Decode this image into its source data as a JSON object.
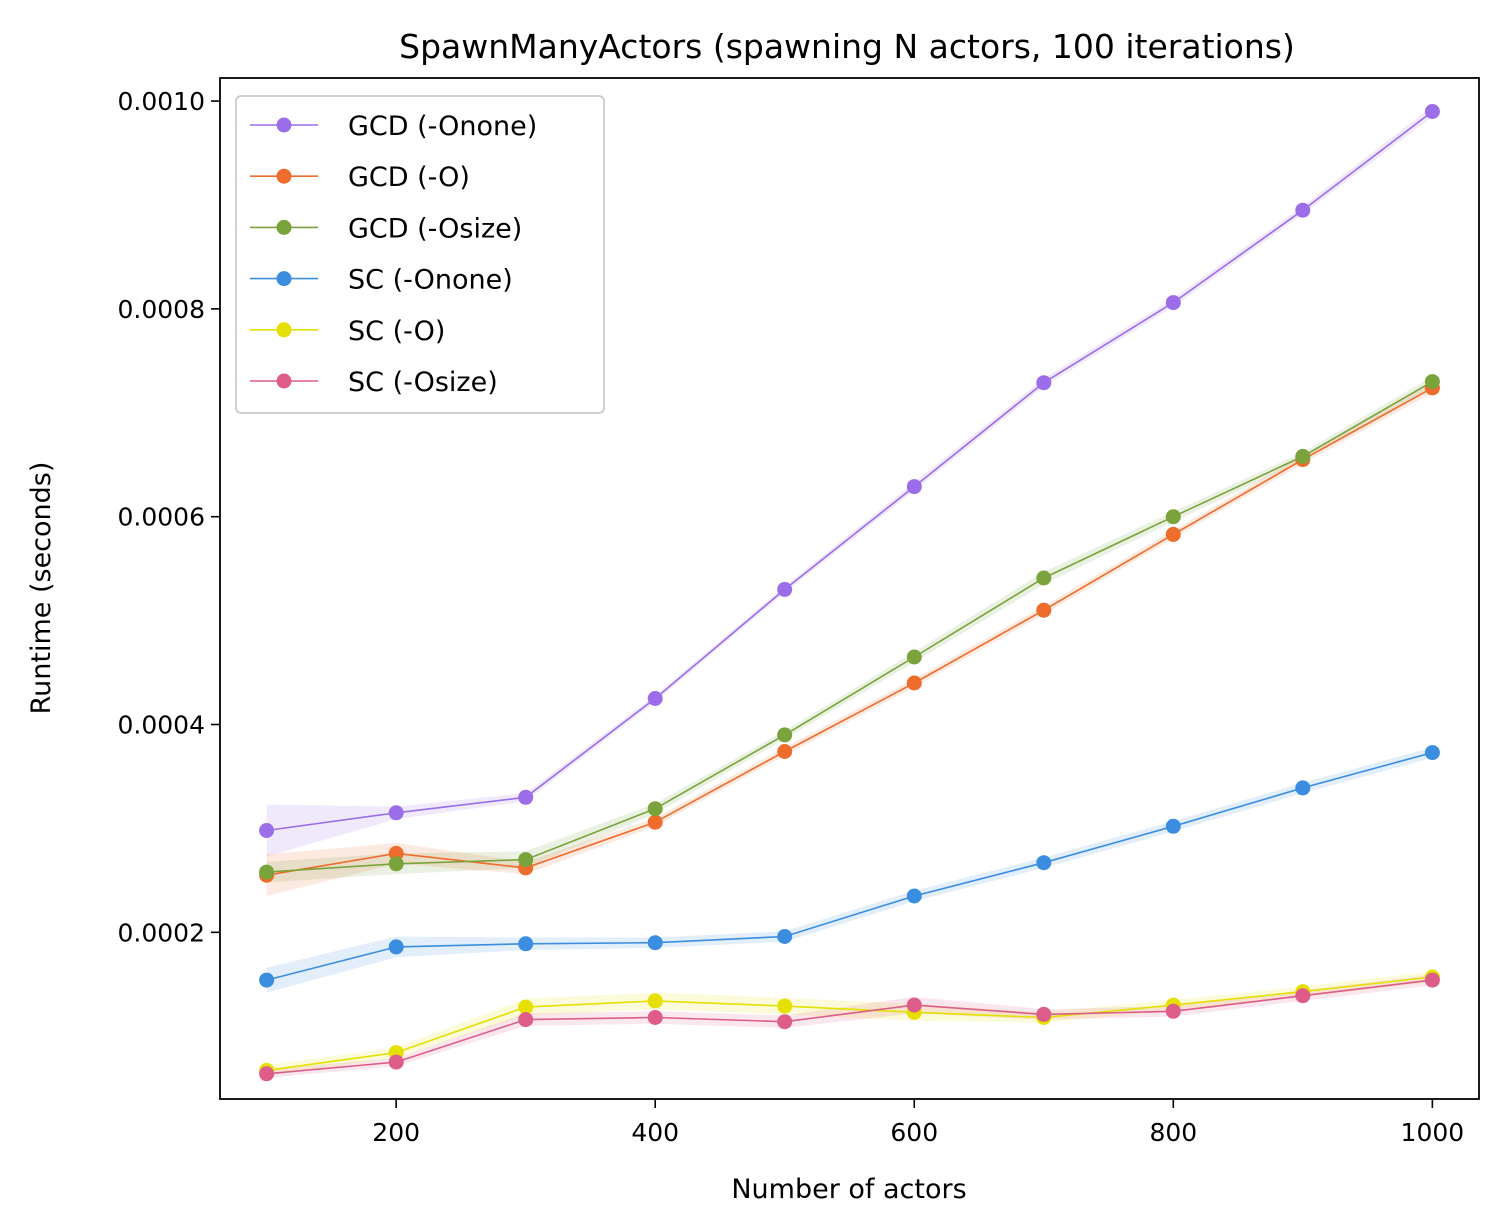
{
  "chart_data": {
    "type": "line",
    "title": "SpawnManyActors (spawning N actors, 100 iterations)",
    "xlabel": "Number of actors",
    "ylabel": "Runtime (seconds)",
    "x": [
      100,
      200,
      300,
      400,
      500,
      600,
      700,
      800,
      900,
      1000
    ],
    "xlim": [
      64,
      1036
    ],
    "ylim": [
      3.96e-05,
      0.0010222
    ],
    "xticks": [
      200,
      400,
      600,
      800,
      1000
    ],
    "xtick_labels": [
      "200",
      "400",
      "600",
      "800",
      "1000"
    ],
    "yticks": [
      0.0002,
      0.0004,
      0.0006,
      0.0008,
      0.001
    ],
    "ytick_labels": [
      "0.0002",
      "0.0004",
      "0.0006",
      "0.0008",
      "0.0010"
    ],
    "grid": false,
    "legend_position": "top-left",
    "series": [
      {
        "name": "GCD (-Onone)",
        "color": "#9b6de8",
        "values": [
          0.000298,
          0.000315,
          0.00033,
          0.000425,
          0.00053,
          0.000629,
          0.000729,
          0.000806,
          0.000895,
          0.00099
        ],
        "band": [
          2.5e-05,
          6e-06,
          4e-06,
          3e-06,
          3e-06,
          4e-06,
          4e-06,
          4e-06,
          4e-06,
          5e-06
        ]
      },
      {
        "name": "GCD (-O)",
        "color": "#ee6c2c",
        "values": [
          0.000255,
          0.000276,
          0.000262,
          0.000306,
          0.000374,
          0.00044,
          0.00051,
          0.000583,
          0.000655,
          0.000724
        ],
        "band": [
          2e-05,
          1e-05,
          6e-06,
          4e-06,
          4e-06,
          4e-06,
          4e-06,
          4e-06,
          4e-06,
          5e-06
        ]
      },
      {
        "name": "GCD (-Osize)",
        "color": "#7aa33c",
        "values": [
          0.000258,
          0.000266,
          0.00027,
          0.000319,
          0.00039,
          0.000465,
          0.000541,
          0.0006,
          0.000658,
          0.00073
        ],
        "band": [
          1e-05,
          1e-05,
          8e-06,
          5e-06,
          4e-06,
          5e-06,
          6e-06,
          5e-06,
          4e-06,
          5e-06
        ]
      },
      {
        "name": "SC (-Onone)",
        "color": "#3b8de0",
        "values": [
          0.000154,
          0.000186,
          0.000189,
          0.00019,
          0.000196,
          0.000235,
          0.000267,
          0.000302,
          0.000339,
          0.000373
        ],
        "band": [
          1.2e-05,
          1e-05,
          6e-06,
          5e-06,
          5e-06,
          5e-06,
          5e-06,
          5e-06,
          5e-06,
          5e-06
        ]
      },
      {
        "name": "SC (-O)",
        "color": "#e5e000",
        "values": [
          6.71e-05,
          8.43e-05,
          0.000128,
          0.000134,
          0.000129,
          0.000123,
          0.000118,
          0.00013,
          0.000143,
          0.000157
        ],
        "band": [
          5e-06,
          5e-06,
          8e-06,
          8e-06,
          8e-06,
          8e-06,
          5e-06,
          5e-06,
          5e-06,
          5e-06
        ]
      },
      {
        "name": "SC (-Osize)",
        "color": "#dd5c8a",
        "values": [
          6.39e-05,
          7.51e-05,
          0.000116,
          0.000118,
          0.000114,
          0.00013,
          0.000121,
          0.000124,
          0.000139,
          0.000154
        ],
        "band": [
          4e-06,
          4e-06,
          6e-06,
          6e-06,
          6e-06,
          8e-06,
          5e-06,
          5e-06,
          5e-06,
          5e-06
        ]
      }
    ]
  }
}
